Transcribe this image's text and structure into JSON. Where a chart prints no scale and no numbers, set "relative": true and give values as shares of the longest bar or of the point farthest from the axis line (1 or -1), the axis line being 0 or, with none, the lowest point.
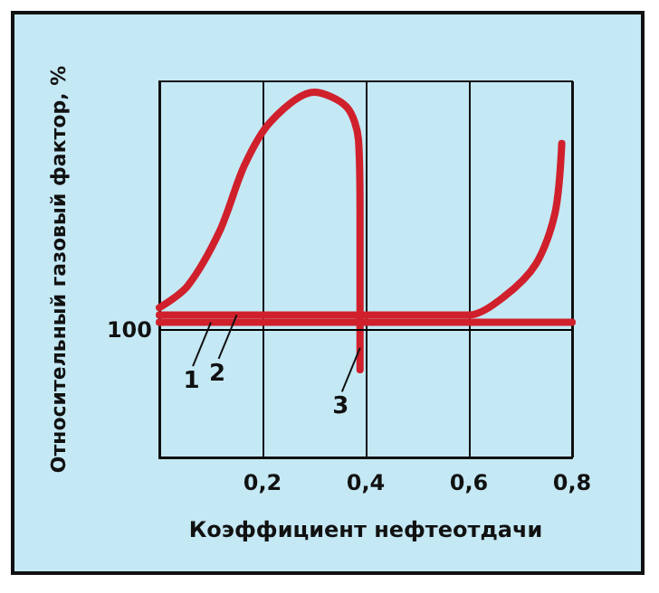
{
  "chart_data": {
    "type": "line",
    "xlabel": "Коэффициент нефтеотдачи",
    "ylabel": "Относительный газовый фактор, %",
    "relative": true,
    "xlim": [
      0,
      0.8
    ],
    "xticks": [
      {
        "value": 0.2,
        "label": "0,2"
      },
      {
        "value": 0.4,
        "label": "0,4"
      },
      {
        "value": 0.6,
        "label": "0,6"
      },
      {
        "value": 0.8,
        "label": "0,8"
      }
    ],
    "tick_labels": "x",
    "grid": "x",
    "marker": "none",
    "line_style": "solid",
    "ref_lines": [
      {
        "axis": "y",
        "value": 0.35,
        "color": "#000000"
      }
    ],
    "series": [
      {
        "color": "#d0202c",
        "x": [
          0,
          0.8
        ],
        "values": [
          0.37,
          0.37
        ]
      },
      {
        "color": "#d0202c",
        "x": [
          0,
          0.6,
          0.668,
          0.73,
          0.767,
          0.78
        ],
        "values": [
          0.39,
          0.39,
          0.44,
          0.53,
          0.67,
          0.86
        ]
      },
      {
        "color": "#d0202c",
        "x": [
          0,
          0.055,
          0.117,
          0.165,
          0.216,
          0.3,
          0.363,
          0.386,
          0.389,
          0.389
        ],
        "values": [
          0.41,
          0.47,
          0.62,
          0.8,
          0.92,
          1,
          0.96,
          0.87,
          0.67,
          0.24
        ]
      }
    ],
    "annotations": [
      "100",
      {
        "text": "1",
        "x": 0.1,
        "y": 0.37
      },
      {
        "text": "2",
        "x": 0.15,
        "y": 0.39
      },
      {
        "text": "3",
        "x": 0.389,
        "y": 0.3
      }
    ]
  }
}
